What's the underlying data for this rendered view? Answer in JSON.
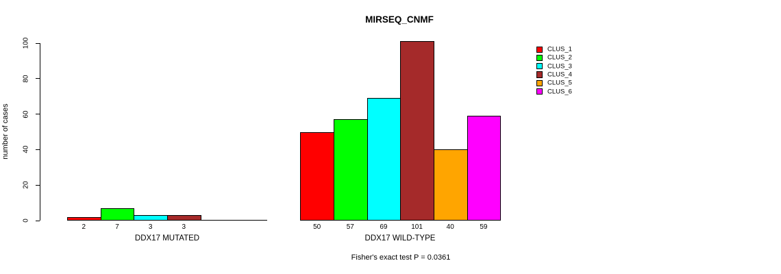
{
  "chart_data": {
    "type": "bar",
    "title": "MIRSEQ_CNMF",
    "ylabel": "number of cases",
    "xlabel": "",
    "ylim": [
      0,
      100
    ],
    "yticks": [
      0,
      20,
      40,
      60,
      80,
      100
    ],
    "grid": false,
    "legend_position": "right",
    "clusters": [
      {
        "name": "CLUS_1",
        "color": "#FF0000"
      },
      {
        "name": "CLUS_2",
        "color": "#00FF00"
      },
      {
        "name": "CLUS_3",
        "color": "#00FFFF"
      },
      {
        "name": "CLUS_4",
        "color": "#A52A2A"
      },
      {
        "name": "CLUS_5",
        "color": "#FFA500"
      },
      {
        "name": "CLUS_6",
        "color": "#FF00FF"
      }
    ],
    "groups": [
      {
        "label": "DDX17 MUTATED",
        "values": [
          2,
          7,
          3,
          3,
          0,
          0
        ],
        "value_labels": [
          "2",
          "7",
          "3",
          "3",
          "",
          ""
        ]
      },
      {
        "label": "DDX17 WILD-TYPE",
        "values": [
          50,
          57,
          69,
          101,
          40,
          59
        ],
        "value_labels": [
          "50",
          "57",
          "69",
          "101",
          "40",
          "59"
        ]
      }
    ],
    "annotation": "Fisher's exact test P = 0.0361"
  }
}
